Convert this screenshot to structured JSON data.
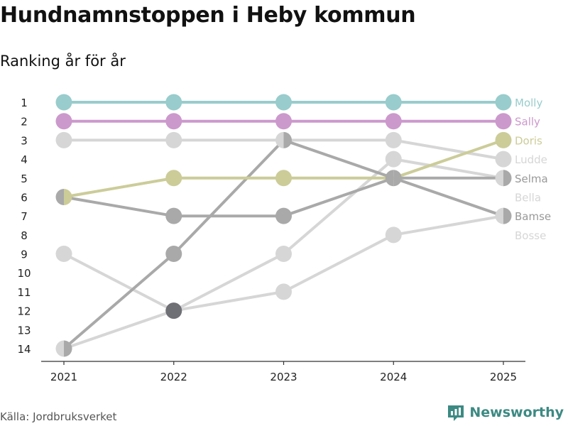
{
  "chart_data": {
    "type": "line",
    "title": "Hundnamnstoppen i Heby kommun",
    "subtitle": "Ranking år för år",
    "xlabel": "",
    "ylabel": "",
    "x": [
      "2021",
      "2022",
      "2023",
      "2024",
      "2025"
    ],
    "ylim": [
      1,
      14
    ],
    "yticks": [
      1,
      2,
      3,
      4,
      5,
      6,
      7,
      8,
      9,
      10,
      11,
      12,
      13,
      14
    ],
    "y_inverted": true,
    "series": [
      {
        "name": "Bosse",
        "color": "#d6d6d6",
        "values": [
          14,
          12,
          11,
          8,
          7
        ]
      },
      {
        "name": "Bella",
        "color": "#d6d6d6",
        "values": [
          9,
          12,
          9,
          4,
          5
        ]
      },
      {
        "name": "Ludde",
        "color": "#d6d6d6",
        "values": [
          3,
          3,
          3,
          3,
          4
        ]
      },
      {
        "name": "Selma",
        "color": "#a9a9a9",
        "values": [
          6,
          7,
          7,
          5,
          5
        ]
      },
      {
        "name": "Bamse",
        "color": "#a9a9a9",
        "values": [
          14,
          9,
          3,
          5,
          7
        ]
      },
      {
        "name": "Doris",
        "color": "#cccc99",
        "values": [
          6,
          5,
          5,
          5,
          3
        ]
      },
      {
        "name": "Sally",
        "color": "#cc99cc",
        "values": [
          2,
          2,
          2,
          2,
          2
        ]
      },
      {
        "name": "Molly",
        "color": "#99cccc",
        "values": [
          1,
          1,
          1,
          1,
          1
        ]
      }
    ],
    "labels": [
      {
        "text": "Molly",
        "color": "#99cccc",
        "rank": 1
      },
      {
        "text": "Sally",
        "color": "#cc99cc",
        "rank": 2
      },
      {
        "text": "Doris",
        "color": "#cccc99",
        "rank": 3
      },
      {
        "text": "Ludde",
        "color": "#d6d6d6",
        "rank": 4
      },
      {
        "text": "Selma",
        "color": "#999999",
        "rank": 5
      },
      {
        "text": "Bella",
        "color": "#d6d6d6",
        "rank": 6
      },
      {
        "text": "Bamse",
        "color": "#999999",
        "rank": 7
      },
      {
        "text": "Bosse",
        "color": "#d6d6d6",
        "rank": 8
      }
    ]
  },
  "footer": {
    "source": "Källa: Jordbruksverket",
    "brand": "Newsworthy",
    "brand_color": "#3c8a83"
  }
}
